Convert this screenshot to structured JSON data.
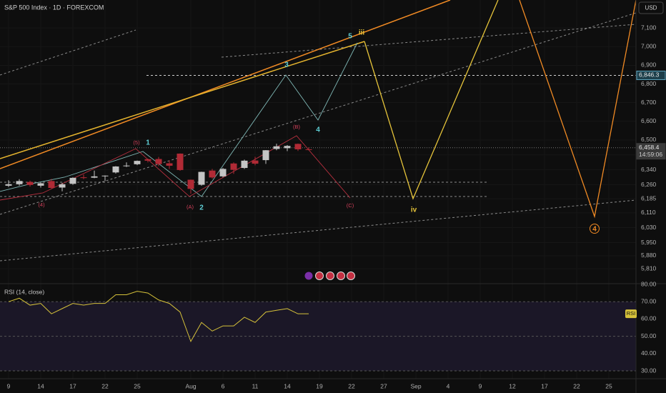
{
  "header": {
    "title": "S&P 500 Index · 1D · FOREXCOM",
    "currency": "USD"
  },
  "annotations": [
    "5",
    "iii",
    "3",
    "(B)",
    "4",
    "(5)",
    "1",
    "(4)",
    "(A)",
    "2",
    "(C)",
    "iv",
    "4"
  ],
  "chart_data": [
    {
      "type": "candlestick",
      "categories": [
        "9",
        null,
        null,
        "14",
        null,
        null,
        "17",
        null,
        null,
        "22",
        null,
        null,
        "25",
        null,
        null,
        null,
        null,
        "Aug",
        null,
        null,
        "6",
        null,
        null,
        "11",
        null,
        null,
        "14",
        null,
        null,
        "19",
        null,
        null,
        "22",
        null,
        null,
        "27",
        null,
        null,
        "Sep",
        null,
        null,
        "4",
        null,
        null,
        "9",
        null,
        null,
        "12",
        null,
        null,
        "17",
        null,
        null,
        "22",
        null,
        null,
        "25",
        null,
        null
      ],
      "open": [
        6255,
        6263,
        6275,
        6255,
        6280,
        6245,
        6265,
        6300,
        6298,
        6306,
        6326,
        6360,
        6370,
        6397,
        6398,
        6375,
        6427,
        6287,
        6260,
        6336,
        6305,
        6374,
        6350,
        6390,
        6392,
        6452,
        6456,
        6479,
        6450,
        null,
        null,
        null,
        null,
        null,
        null,
        null,
        null,
        null,
        null,
        null,
        null,
        null,
        null,
        null,
        null,
        null,
        null,
        null,
        null,
        null,
        null,
        null,
        null,
        null,
        null,
        null,
        null,
        null,
        null
      ],
      "high": [
        6284,
        6290,
        6282,
        6272,
        6292,
        6270,
        6300,
        6315,
        6336,
        6310,
        6360,
        6380,
        6390,
        6400,
        6409,
        6390,
        6428,
        6288,
        6330,
        6345,
        6350,
        6380,
        6395,
        6410,
        6446,
        6480,
        6473,
        6481,
        6461,
        null,
        null,
        null,
        null,
        null,
        null,
        null,
        null,
        null,
        null,
        null,
        null,
        null,
        null,
        null,
        null,
        null,
        null,
        null,
        null,
        null,
        null,
        null,
        null,
        null,
        null,
        null,
        null,
        null,
        null
      ],
      "low": [
        6248,
        6255,
        6250,
        6245,
        6240,
        6225,
        6260,
        6290,
        6295,
        6280,
        6320,
        6355,
        6365,
        6380,
        6360,
        6345,
        6335,
        6212,
        6255,
        6293,
        6300,
        6318,
        6345,
        6364,
        6372,
        6445,
        6440,
        6441,
        6445,
        null,
        null,
        null,
        null,
        null,
        null,
        null,
        null,
        null,
        null,
        null,
        null,
        null,
        null,
        null,
        null,
        null,
        null,
        null,
        null,
        null,
        null,
        null,
        null,
        null,
        null,
        null,
        null,
        null,
        null
      ],
      "close": [
        6263,
        6280,
        6259,
        6268,
        6243,
        6263,
        6297,
        6296,
        6305,
        6309,
        6358,
        6363,
        6388,
        6389,
        6371,
        6362,
        6339,
        6238,
        6329,
        6299,
        6345,
        6340,
        6389,
        6373,
        6445,
        6466,
        6468,
        6450,
        6449,
        null,
        null,
        null,
        null,
        null,
        null,
        null,
        null,
        null,
        null,
        null,
        null,
        null,
        null,
        null,
        null,
        null,
        null,
        null,
        null,
        null,
        null,
        null,
        null,
        null,
        null,
        null,
        null,
        null,
        null
      ],
      "up_color": "#c4c4c4",
      "down_color": "#b02a35",
      "ylim": [
        5730,
        7250
      ],
      "yticks": [
        {
          "value": 7100,
          "label": "7,100"
        },
        {
          "value": 7000,
          "label": "7,000"
        },
        {
          "value": 6900,
          "label": "6,900"
        },
        {
          "value": 6800,
          "label": "6,800"
        },
        {
          "value": 6700,
          "label": "6,700"
        },
        {
          "value": 6600,
          "label": "6,600"
        },
        {
          "value": 6500,
          "label": "6,500"
        },
        {
          "value": 6420,
          "label": "6,420"
        },
        {
          "value": 6340,
          "label": "6,340"
        },
        {
          "value": 6260,
          "label": "6,260"
        },
        {
          "value": 6185,
          "label": "6,185"
        },
        {
          "value": 6110,
          "label": "6,110"
        },
        {
          "value": 6030,
          "label": "6,030"
        },
        {
          "value": 5950,
          "label": "5,950"
        },
        {
          "value": 5880,
          "label": "5,880"
        },
        {
          "value": 5810,
          "label": "5,810"
        }
      ],
      "price_lines": [
        {
          "value": 6846.3,
          "label": "6,846.3"
        },
        {
          "value": 6458.4,
          "label": "6,458.4",
          "countdown": "14:59:06"
        }
      ]
    },
    {
      "type": "line",
      "title": "RSI (14, close)",
      "series": [
        {
          "name": "RSI",
          "color": "#d6c23a",
          "values": [
            70,
            72,
            68,
            69,
            63,
            66,
            69,
            68,
            69,
            69,
            74,
            74,
            76,
            75,
            71,
            69,
            64,
            47,
            58,
            53,
            56,
            56,
            61,
            58,
            64,
            65,
            66,
            63,
            63,
            null,
            null,
            null,
            null,
            null,
            null,
            null,
            null,
            null,
            null,
            null,
            null,
            null,
            null,
            null,
            null,
            null,
            null,
            null,
            null,
            null,
            null,
            null,
            null,
            null,
            null,
            null,
            null,
            null,
            null
          ]
        }
      ],
      "ylim": [
        30,
        80
      ],
      "yticks": [
        {
          "value": 80,
          "label": "80.00"
        },
        {
          "value": 70,
          "label": "70.00"
        },
        {
          "value": 60,
          "label": "60.00"
        },
        {
          "value": 50,
          "label": "50.00"
        },
        {
          "value": 40,
          "label": "40.00"
        },
        {
          "value": 30,
          "label": "30.00"
        }
      ],
      "band": [
        30,
        70
      ],
      "hlines": [
        70,
        50,
        30
      ]
    }
  ]
}
